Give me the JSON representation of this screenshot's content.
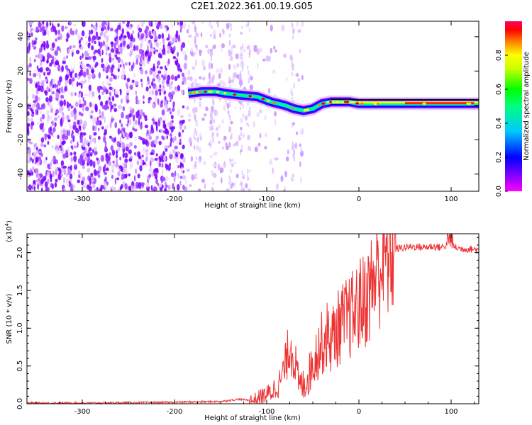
{
  "title": "C2E1.2022.361.00.19.G05",
  "chart_data": [
    {
      "type": "heatmap",
      "xlabel": "Height of straight line (km)",
      "ylabel": "Frequency (Hz)",
      "xlim": [
        -360,
        130
      ],
      "ylim": [
        -50,
        49
      ],
      "x_ticks": [
        -300,
        -200,
        -100,
        0,
        100
      ],
      "y_ticks": [
        -40,
        -20,
        0,
        20,
        40
      ],
      "colorbar": {
        "label": "Normalized spectral amplitude",
        "range": [
          0,
          1
        ],
        "ticks": [
          "0.0",
          "0.2",
          "0.4",
          "0.6",
          "0.8"
        ],
        "colormap": [
          "#ff00ff",
          "#7a00ff",
          "#0000ff",
          "#00c8ff",
          "#00ff7f",
          "#00ff00",
          "#c8ff00",
          "#ffff00",
          "#ff8000",
          "#ff0000",
          "#ff0060"
        ]
      },
      "signal_track": {
        "x": [
          -185,
          -170,
          -155,
          -145,
          -130,
          -110,
          -95,
          -80,
          -70,
          -60,
          -50,
          -40,
          -30,
          -20,
          -10,
          0,
          20,
          50,
          80,
          110,
          130
        ],
        "frequency": [
          7,
          8,
          8,
          7,
          6,
          5,
          2,
          0,
          -2,
          -3,
          -2,
          1,
          2,
          2,
          2,
          1,
          1,
          1,
          1,
          1,
          1
        ]
      }
    },
    {
      "type": "line",
      "xlabel": "Height of straight line (km)",
      "ylabel": "SNR (10 * v/v)",
      "y_exponent": "(x10",
      "y_exponent_power": "4",
      "y_exponent_close": ")",
      "xlim": [
        -360,
        130
      ],
      "ylim": [
        0,
        2.25
      ],
      "x_ticks": [
        -300,
        -200,
        -100,
        0,
        100
      ],
      "y_ticks": [
        "0.0",
        "0.5",
        "1.0",
        "1.5",
        "2.0"
      ],
      "color": "#ee3333",
      "series": [
        {
          "x": [
            -360,
            -300,
            -200,
            -150,
            -130,
            -115,
            -105,
            -95,
            -85,
            -80,
            -75,
            -70,
            -65,
            -60,
            -55,
            -50,
            -45,
            -40,
            -35,
            -30,
            -25,
            -20,
            -15,
            -10,
            -5,
            0,
            5,
            10,
            15,
            20,
            25,
            30,
            35,
            40,
            50,
            60,
            70,
            80,
            90,
            95,
            100,
            105,
            110,
            120,
            130
          ],
          "values": [
            0.01,
            0.01,
            0.02,
            0.03,
            0.06,
            0.04,
            0.1,
            0.15,
            0.3,
            0.5,
            0.8,
            0.6,
            0.25,
            0.25,
            0.35,
            0.55,
            0.7,
            0.8,
            0.9,
            0.85,
            0.95,
            1.05,
            1.1,
            1.15,
            1.2,
            1.3,
            1.35,
            1.45,
            1.6,
            1.75,
            1.85,
            1.95,
            2.0,
            2.05,
            2.07,
            2.08,
            2.07,
            2.08,
            2.07,
            2.1,
            2.1,
            2.07,
            2.05,
            2.05,
            2.04
          ]
        }
      ]
    }
  ]
}
